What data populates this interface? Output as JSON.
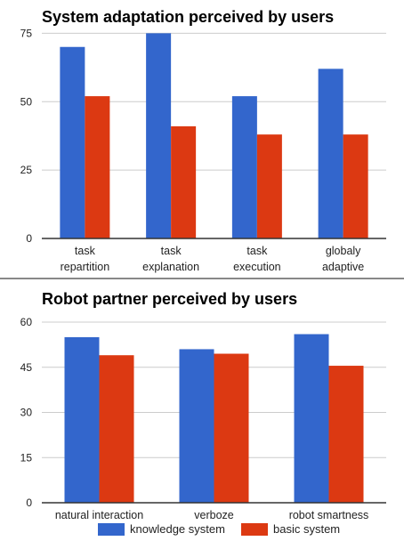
{
  "colors": {
    "knowledge": "#3366cc",
    "basic": "#dc3912",
    "grid": "#cccccc",
    "axis": "#333333",
    "text": "#222222"
  },
  "legend": {
    "knowledge_label": "knowledge system",
    "basic_label": "basic system"
  },
  "chart_data": [
    {
      "type": "bar",
      "title": "System adaptation perceived by users",
      "categories": [
        [
          "task",
          "repartition"
        ],
        [
          "task",
          "explanation"
        ],
        [
          "task",
          "execution"
        ],
        [
          "globaly",
          "adaptive"
        ]
      ],
      "series": [
        {
          "name": "knowledge system",
          "values": [
            70,
            75,
            52,
            62
          ]
        },
        {
          "name": "basic system",
          "values": [
            52,
            41,
            38,
            38
          ]
        }
      ],
      "yticks": [
        "0",
        "25",
        "50",
        "75"
      ],
      "ylim": [
        0,
        80
      ],
      "grid": true
    },
    {
      "type": "bar",
      "title": "Robot partner perceived by users",
      "categories": [
        [
          "natural interaction"
        ],
        [
          "verboze"
        ],
        [
          "robot smartness"
        ]
      ],
      "series": [
        {
          "name": "knowledge system",
          "values": [
            55,
            51,
            56
          ]
        },
        {
          "name": "basic system",
          "values": [
            49,
            49.5,
            45.5
          ]
        }
      ],
      "yticks": [
        "0",
        "15",
        "30",
        "45",
        "60"
      ],
      "ylim": [
        0,
        60
      ],
      "grid": true,
      "legend_position": "bottom"
    }
  ]
}
